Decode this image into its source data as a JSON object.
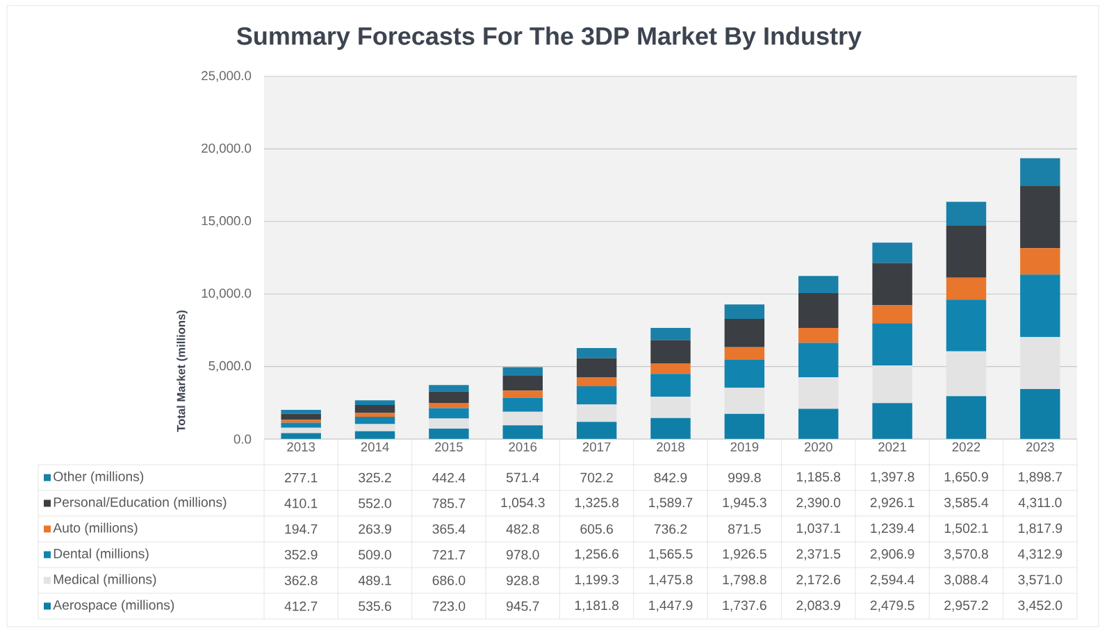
{
  "chart_data": {
    "type": "bar",
    "stacked": true,
    "title": "Summary Forecasts For The 3DP Market By Industry",
    "ylabel": "Total Market (millions)",
    "categories": [
      "2013",
      "2014",
      "2015",
      "2016",
      "2017",
      "2018",
      "2019",
      "2020",
      "2021",
      "2022",
      "2023"
    ],
    "ylim": [
      0,
      25000
    ],
    "yticks": [
      {
        "value": 0,
        "label": "0.0"
      },
      {
        "value": 5000,
        "label": "5,000.0"
      },
      {
        "value": 10000,
        "label": "10,000.0"
      },
      {
        "value": 15000,
        "label": "15,000.0"
      },
      {
        "value": 20000,
        "label": "20,000.0"
      },
      {
        "value": 25000,
        "label": "25,000.0"
      }
    ],
    "grid": "y",
    "legend": "bottom",
    "series": [
      {
        "name": "Aerospace (millions)",
        "color": "#0f7fa8",
        "values": [
          412.7,
          535.6,
          723.0,
          945.7,
          1181.8,
          1447.9,
          1737.6,
          2083.9,
          2479.5,
          2957.2,
          3452.0
        ],
        "value_labels": [
          "412.7",
          "535.6",
          "723.0",
          "945.7",
          "1,181.8",
          "1,447.9",
          "1,737.6",
          "2,083.9",
          "2,479.5",
          "2,957.2",
          "3,452.0"
        ]
      },
      {
        "name": "Medical (millions)",
        "color": "#e3e3e3",
        "values": [
          362.8,
          489.1,
          686.0,
          928.8,
          1199.3,
          1475.8,
          1798.8,
          2172.6,
          2594.4,
          3088.4,
          3571.0
        ],
        "value_labels": [
          "362.8",
          "489.1",
          "686.0",
          "928.8",
          "1,199.3",
          "1,475.8",
          "1,798.8",
          "2,172.6",
          "2,594.4",
          "3,088.4",
          "3,571.0"
        ]
      },
      {
        "name": "Dental (millions)",
        "color": "#1185b0",
        "values": [
          352.9,
          509.0,
          721.7,
          978.0,
          1256.6,
          1565.5,
          1926.5,
          2371.5,
          2906.9,
          3570.8,
          4312.9
        ],
        "value_labels": [
          "352.9",
          "509.0",
          "721.7",
          "978.0",
          "1,256.6",
          "1,565.5",
          "1,926.5",
          "2,371.5",
          "2,906.9",
          "3,570.8",
          "4,312.9"
        ]
      },
      {
        "name": "Auto (millions)",
        "color": "#e8762d",
        "values": [
          194.7,
          263.9,
          365.4,
          482.8,
          605.6,
          736.2,
          871.5,
          1037.1,
          1239.4,
          1502.1,
          1817.9
        ],
        "value_labels": [
          "194.7",
          "263.9",
          "365.4",
          "482.8",
          "605.6",
          "736.2",
          "871.5",
          "1,037.1",
          "1,239.4",
          "1,502.1",
          "1,817.9"
        ]
      },
      {
        "name": "Personal/Education (millions)",
        "color": "#3b3e43",
        "values": [
          410.1,
          552.0,
          785.7,
          1054.3,
          1325.8,
          1589.7,
          1945.3,
          2390.0,
          2926.1,
          3585.4,
          4311.0
        ],
        "value_labels": [
          "410.1",
          "552.0",
          "785.7",
          "1,054.3",
          "1,325.8",
          "1,589.7",
          "1,945.3",
          "2,390.0",
          "2,926.1",
          "3,585.4",
          "4,311.0"
        ]
      },
      {
        "name": "Other (millions)",
        "color": "#1a80a8",
        "values": [
          277.1,
          325.2,
          442.4,
          571.4,
          702.2,
          842.9,
          999.8,
          1185.8,
          1397.8,
          1650.9,
          1898.7
        ],
        "value_labels": [
          "277.1",
          "325.2",
          "442.4",
          "571.4",
          "702.2",
          "842.9",
          "999.8",
          "1,185.8",
          "1,397.8",
          "1,650.9",
          "1,898.7"
        ]
      }
    ]
  }
}
